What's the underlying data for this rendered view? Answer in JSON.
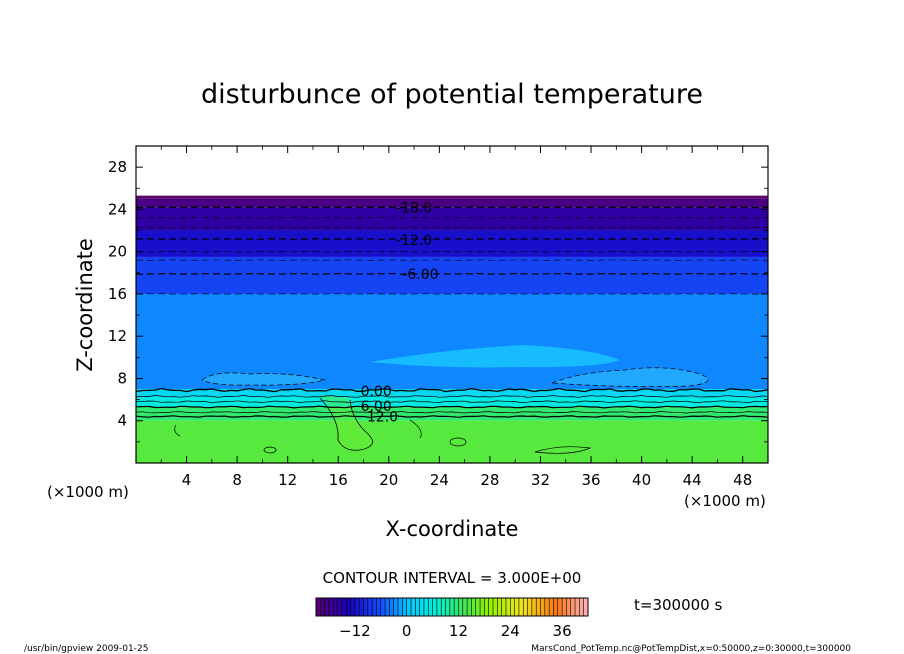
{
  "chart_data": {
    "type": "heatmap",
    "title": "disturbunce of potential temperature",
    "xlabel": "X-coordinate",
    "ylabel": "Z-coordinate",
    "x_unit": "(×1000 m)",
    "x_unit_left": "(×1000 m)",
    "xlim": [
      0,
      50
    ],
    "ylim": [
      0,
      30
    ],
    "x_ticks": [
      4,
      8,
      12,
      16,
      20,
      24,
      28,
      32,
      36,
      40,
      44,
      48
    ],
    "y_ticks": [
      4,
      8,
      12,
      16,
      20,
      24,
      28
    ],
    "contour_interval": "CONTOUR INTERVAL = 3.000E+00",
    "time_label": "t=300000 s",
    "colorbar": {
      "ticks": [
        -12,
        0,
        12,
        24,
        36
      ],
      "range": [
        -21,
        42
      ]
    },
    "layers": [
      {
        "z_bottom": 0,
        "z_top": 4,
        "value": 15
      },
      {
        "z_bottom": 4,
        "z_top": 5.3,
        "value": 12
      },
      {
        "z_bottom": 5.3,
        "z_top": 6.2,
        "value": 6
      },
      {
        "z_bottom": 6.2,
        "z_top": 7,
        "value": 3
      },
      {
        "z_bottom": 7,
        "z_top": 16,
        "value": -3
      },
      {
        "z_bottom": 16,
        "z_top": 19.5,
        "value": -7
      },
      {
        "z_bottom": 19.5,
        "z_top": 22,
        "value": -12
      },
      {
        "z_bottom": 22,
        "z_top": 24.2,
        "value": -16
      },
      {
        "z_bottom": 24.2,
        "z_top": 25,
        "value": -19
      },
      {
        "z_bottom": 25,
        "z_top": 25.3,
        "value": -21
      }
    ],
    "contour_labels": [
      {
        "text": "-18.0",
        "x": 22,
        "z": 24.2
      },
      {
        "text": "-12.0",
        "x": 22,
        "z": 21.1
      },
      {
        "text": "-6.00",
        "x": 22.5,
        "z": 17.9
      },
      {
        "text": "0.00",
        "x": 19,
        "z": 6.8
      },
      {
        "text": "6.00",
        "x": 19,
        "z": 5.4
      },
      {
        "text": "12.0",
        "x": 19.5,
        "z": 4.4
      }
    ]
  },
  "footer": {
    "left": "/usr/bin/gpview 2009-01-25",
    "right": "MarsCond_PotTemp.nc@PotTempDist,x=0:50000,z=0:30000,t=300000"
  }
}
